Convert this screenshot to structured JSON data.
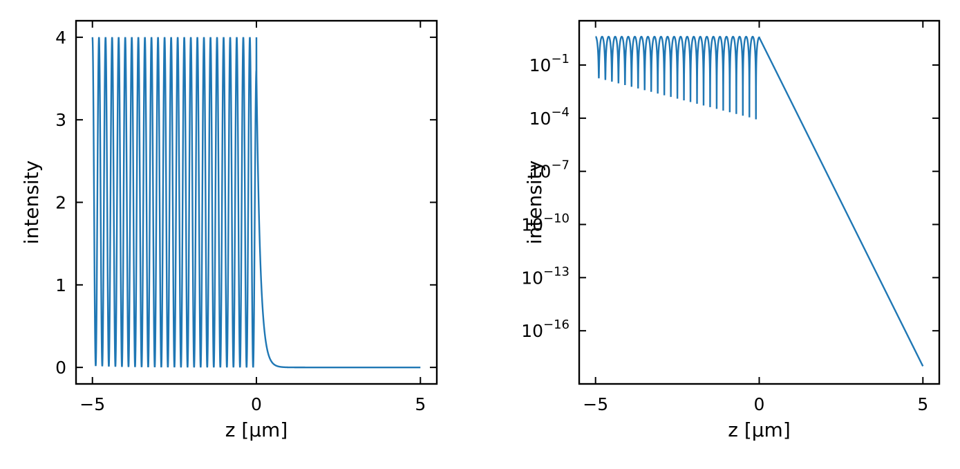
{
  "chart_data": [
    {
      "type": "line",
      "title": "",
      "xlabel": "z [µm]",
      "ylabel": "intensity",
      "yscale": "linear",
      "xlim": [
        -5.5,
        5.5
      ],
      "ylim": [
        -0.2,
        4.2
      ],
      "xticks": [
        -5,
        0,
        5
      ],
      "xtick_labels": [
        "−5",
        "0",
        "5"
      ],
      "yticks": [
        0,
        1,
        2,
        3,
        4
      ],
      "ytick_labels": [
        "0",
        "1",
        "2",
        "3",
        "4"
      ],
      "grid": false,
      "legend": "none",
      "color": "#1f77b4",
      "series": [
        {
          "description_points": {
            "z": [
              -5.0,
              -4.88,
              -4.78,
              -4.68,
              -4.58,
              -4.48,
              -4.38,
              -4.28,
              -4.18,
              -4.08,
              -3.98,
              -3.88,
              -3.78,
              -3.68,
              -3.58,
              -3.48,
              -3.38,
              -3.28,
              -3.18,
              -3.08,
              -2.98,
              -2.88,
              -2.78,
              -2.68,
              -2.58,
              -2.48,
              -2.38,
              -2.28,
              -2.18,
              -2.08,
              -1.98,
              -1.88,
              -1.78,
              -1.68,
              -1.58,
              -1.48,
              -1.38,
              -1.28,
              -1.18,
              -1.08,
              -0.98,
              -0.88,
              -0.78,
              -0.68,
              -0.58,
              -0.48,
              -0.38,
              -0.28,
              -0.18,
              -0.1,
              0.0,
              0.1,
              0.2,
              0.3,
              0.4,
              0.5,
              0.6,
              0.7,
              0.8,
              1.0,
              1.5,
              2.0,
              3.0,
              4.0,
              5.0
            ],
            "intensity": [
              3.95,
              0.02,
              4.0,
              0.02,
              4.0,
              0.02,
              4.0,
              0.02,
              4.0,
              0.02,
              4.0,
              0.02,
              4.0,
              0.02,
              4.0,
              0.02,
              4.0,
              0.02,
              4.0,
              0.02,
              4.0,
              0.02,
              4.0,
              0.02,
              4.0,
              0.02,
              4.0,
              0.02,
              4.0,
              0.02,
              4.0,
              0.02,
              4.0,
              0.02,
              4.0,
              0.02,
              4.0,
              0.02,
              4.0,
              0.02,
              4.0,
              0.02,
              4.0,
              0.02,
              4.0,
              0.02,
              4.0,
              0.02,
              4.0,
              0.02,
              3.6,
              1.6,
              0.7,
              0.32,
              0.14,
              0.06,
              0.03,
              0.012,
              0.005,
              0.001,
              0.0,
              0.0,
              0.0,
              0.0,
              0.0
            ]
          },
          "model": {
            "z_min": -5.0,
            "z_max": 5.0,
            "fringe_period": 0.2,
            "inside_max": 4.0,
            "inside_min_near_left": 0.02,
            "inside_min_near_interface": 8e-05,
            "surface_value": 3.6,
            "decay_to_at_z5": 1e-18
          }
        }
      ]
    },
    {
      "type": "line",
      "title": "",
      "xlabel": "z [µm]",
      "ylabel": "intensity",
      "yscale": "log",
      "xlim": [
        -5.5,
        5.5
      ],
      "ylim_exponent": [
        -19.0,
        1.5
      ],
      "xticks": [
        -5,
        0,
        5
      ],
      "xtick_labels": [
        "−5",
        "0",
        "5"
      ],
      "yticks_exponents": [
        -1,
        -4,
        -7,
        -10,
        -13,
        -16
      ],
      "ytick_labels": [
        "10",
        "10",
        "10",
        "10",
        "10",
        "10"
      ],
      "ytick_exponent_labels": [
        "−1",
        "−4",
        "−7",
        "−10",
        "−13",
        "−16"
      ],
      "grid": false,
      "legend": "none",
      "color": "#1f77b4",
      "series": [
        {
          "description_points": {
            "z": [
              -5.0,
              -4.9,
              -4.8,
              -4.0,
              -3.0,
              -2.0,
              -1.0,
              -0.2,
              -0.1,
              0.0,
              5.0
            ],
            "log10_intensity": [
              0.6,
              0.6,
              -1.8,
              -2.0,
              -2.3,
              -2.7,
              -3.2,
              -4.5,
              0.6,
              0.56,
              -18.0
            ]
          }
        }
      ]
    }
  ]
}
